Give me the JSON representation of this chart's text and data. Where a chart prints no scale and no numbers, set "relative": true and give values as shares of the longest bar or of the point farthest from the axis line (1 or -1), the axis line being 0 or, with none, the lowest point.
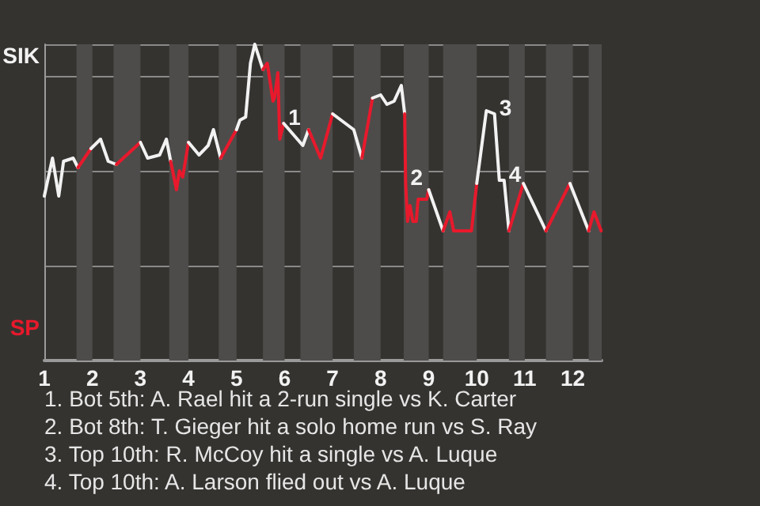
{
  "chart_data": {
    "type": "line",
    "relative": true,
    "xlim": [
      1,
      12.6
    ],
    "xticks": [
      1,
      2,
      3,
      4,
      5,
      6,
      7,
      8,
      9,
      10,
      11,
      12
    ],
    "grid": "y",
    "marker": "none",
    "line_style": "solid",
    "bands": [
      {
        "axis": "x",
        "from": 1.67,
        "to": 2,
        "color": "#4e4c4a"
      },
      {
        "axis": "x",
        "from": 2.44,
        "to": 3,
        "color": "#4e4c4a"
      },
      {
        "axis": "x",
        "from": 3.6,
        "to": 4,
        "color": "#4e4c4a"
      },
      {
        "axis": "x",
        "from": 4.63,
        "to": 5,
        "color": "#4e4c4a"
      },
      {
        "axis": "x",
        "from": 5.55,
        "to": 6,
        "color": "#4e4c4a"
      },
      {
        "axis": "x",
        "from": 6.33,
        "to": 7,
        "color": "#4e4c4a"
      },
      {
        "axis": "x",
        "from": 7.44,
        "to": 8,
        "color": "#4e4c4a"
      },
      {
        "axis": "x",
        "from": 8.48,
        "to": 9,
        "color": "#4e4c4a"
      },
      {
        "axis": "x",
        "from": 9.3,
        "to": 10,
        "color": "#4e4c4a"
      },
      {
        "axis": "x",
        "from": 10.67,
        "to": 11,
        "color": "#4e4c4a"
      },
      {
        "axis": "x",
        "from": 11.44,
        "to": 12,
        "color": "#4e4c4a"
      },
      {
        "axis": "x",
        "from": 12.33,
        "to": 12.6,
        "color": "#4e4c4a"
      }
    ],
    "series": [
      {
        "color": "#f2f2f2",
        "x": [
          1,
          1.17,
          1.3,
          1.4,
          1.6,
          1.7
        ],
        "values": [
          0.52,
          0.64,
          0.52,
          0.63,
          0.64,
          0.61
        ]
      },
      {
        "color": "#e8192c",
        "x": [
          1.7,
          1.97
        ],
        "values": [
          0.61,
          0.67
        ]
      },
      {
        "color": "#f2f2f2",
        "x": [
          1.97,
          2.17,
          2.33,
          2.5
        ],
        "values": [
          0.67,
          0.7,
          0.63,
          0.62
        ]
      },
      {
        "color": "#e8192c",
        "x": [
          2.5,
          3
        ],
        "values": [
          0.62,
          0.69
        ]
      },
      {
        "color": "#f2f2f2",
        "x": [
          3,
          3.15,
          3.4,
          3.54,
          3.63
        ],
        "values": [
          0.69,
          0.64,
          0.65,
          0.7,
          0.63
        ]
      },
      {
        "color": "#e8192c",
        "x": [
          3.63,
          3.75,
          3.81,
          3.88,
          4
        ],
        "values": [
          0.63,
          0.54,
          0.6,
          0.58,
          0.69
        ]
      },
      {
        "color": "#f2f2f2",
        "x": [
          4,
          4.22,
          4.41,
          4.52,
          4.67
        ],
        "values": [
          0.69,
          0.65,
          0.68,
          0.73,
          0.64
        ]
      },
      {
        "color": "#e8192c",
        "x": [
          4.67,
          5
        ],
        "values": [
          0.64,
          0.73
        ]
      },
      {
        "color": "#f2f2f2",
        "x": [
          5,
          5.07,
          5.19,
          5.29,
          5.38,
          5.55
        ],
        "values": [
          0.73,
          0.76,
          0.77,
          0.94,
          1,
          0.92
        ]
      },
      {
        "color": "#e8192c",
        "x": [
          5.55,
          5.64,
          5.76,
          5.79,
          5.86,
          5.9,
          5.98
        ],
        "values": [
          0.92,
          0.94,
          0.82,
          0.83,
          0.91,
          0.7,
          0.75
        ]
      },
      {
        "color": "#f2f2f2",
        "x": [
          5.98,
          6.38,
          6.5
        ],
        "values": [
          0.75,
          0.68,
          0.73
        ]
      },
      {
        "color": "#e8192c",
        "x": [
          6.5,
          6.75,
          7
        ],
        "values": [
          0.73,
          0.64,
          0.78
        ]
      },
      {
        "color": "#f2f2f2",
        "x": [
          7,
          7.44,
          7.61
        ],
        "values": [
          0.78,
          0.73,
          0.64
        ]
      },
      {
        "color": "#e8192c",
        "x": [
          7.61,
          7.83
        ],
        "values": [
          0.64,
          0.83
        ]
      },
      {
        "color": "#f2f2f2",
        "x": [
          7.83,
          8,
          8.13,
          8.28,
          8.43,
          8.5
        ],
        "values": [
          0.83,
          0.84,
          0.81,
          0.82,
          0.87,
          0.78
        ]
      },
      {
        "color": "#e8192c",
        "x": [
          8.5,
          8.52,
          8.56,
          8.61,
          8.67,
          8.74,
          8.78,
          8.96,
          9
        ],
        "values": [
          0.78,
          0.56,
          0.44,
          0.49,
          0.44,
          0.44,
          0.51,
          0.51,
          0.54
        ]
      },
      {
        "color": "#f2f2f2",
        "x": [
          9,
          9.3
        ],
        "values": [
          0.54,
          0.41
        ]
      },
      {
        "color": "#e8192c",
        "x": [
          9.3,
          9.44,
          9.52,
          9.89,
          10
        ],
        "values": [
          0.41,
          0.47,
          0.41,
          0.41,
          0.56
        ]
      },
      {
        "color": "#f2f2f2",
        "x": [
          10,
          10.2,
          10.37,
          10.47,
          10.57,
          10.67
        ],
        "values": [
          0.56,
          0.79,
          0.78,
          0.57,
          0.57,
          0.41
        ]
      },
      {
        "color": "#e8192c",
        "x": [
          10.67,
          10.97
        ],
        "values": [
          0.41,
          0.56
        ]
      },
      {
        "color": "#f2f2f2",
        "x": [
          10.97,
          11.44
        ],
        "values": [
          0.56,
          0.41
        ]
      },
      {
        "color": "#e8192c",
        "x": [
          11.44,
          11.94
        ],
        "values": [
          0.41,
          0.56
        ]
      },
      {
        "color": "#f2f2f2",
        "x": [
          11.94,
          12.33
        ],
        "values": [
          0.56,
          0.41
        ]
      },
      {
        "color": "#e8192c",
        "x": [
          12.33,
          12.44,
          12.59
        ],
        "values": [
          0.41,
          0.47,
          0.41
        ]
      }
    ],
    "annotations": [
      {
        "text": "1",
        "x": 5.98,
        "y": 0.75
      },
      {
        "text": "2",
        "x": 8.52,
        "y": 0.56
      },
      {
        "text": "3",
        "x": 10.37,
        "y": 0.78
      },
      {
        "text": "4",
        "x": 10.57,
        "y": 0.57
      },
      "SIK",
      "SP",
      "1. Bot 5th: A. Rael hit a 2-run single vs K. Carter",
      "2. Bot 8th: T. Gieger hit a solo home run vs S. Ray",
      "3. Top 10th: R. McCoy hit a single vs A. Luque",
      "4. Top 10th: A. Larson flied out vs A. Luque"
    ]
  }
}
